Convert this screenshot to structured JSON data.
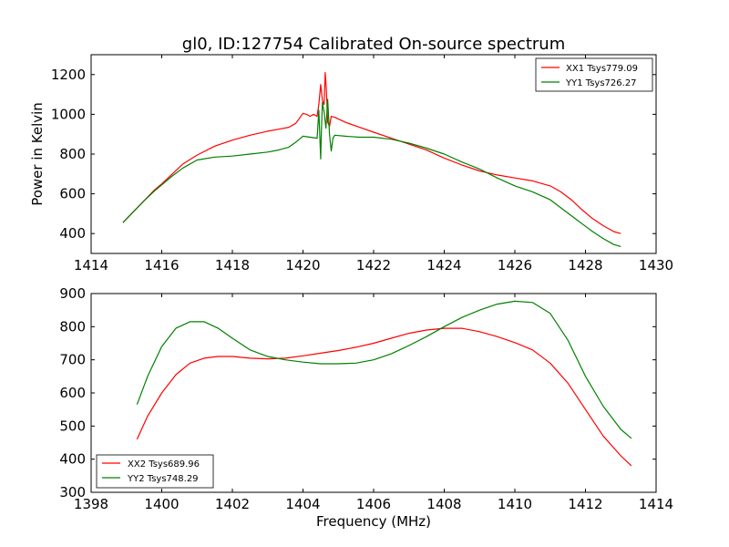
{
  "figure": {
    "title": "gl0, ID:127754 Calibrated On-source spectrum"
  },
  "colors": {
    "xx": "#ff0000",
    "yy": "#008000",
    "axes": "#000000",
    "background": "#ffffff"
  },
  "chart_data": [
    {
      "type": "line",
      "title": "gl0, ID:127754 Calibrated On-source spectrum",
      "xlabel": "",
      "ylabel": "Power in Kelvin",
      "xlim": [
        1414,
        1430
      ],
      "ylim": [
        300,
        1300
      ],
      "xticks": [
        1414,
        1416,
        1418,
        1420,
        1422,
        1424,
        1426,
        1428,
        1430
      ],
      "yticks": [
        400,
        600,
        800,
        1000,
        1200
      ],
      "legend_position": "upper right",
      "grid": false,
      "series": [
        {
          "name": "XX1 Tsys779.09",
          "color": "#ff0000",
          "x": [
            1414.9,
            1415.2,
            1415.5,
            1415.8,
            1416.0,
            1416.3,
            1416.6,
            1417.0,
            1417.5,
            1418.0,
            1418.5,
            1419.0,
            1419.3,
            1419.6,
            1419.8,
            1420.0,
            1420.1,
            1420.2,
            1420.3,
            1420.4,
            1420.45,
            1420.5,
            1420.55,
            1420.6,
            1420.63,
            1420.66,
            1420.7,
            1420.75,
            1420.8,
            1420.9,
            1421.2,
            1421.6,
            1422.0,
            1422.5,
            1423.0,
            1423.5,
            1424.0,
            1424.5,
            1425.0,
            1425.5,
            1426.0,
            1426.5,
            1427.0,
            1427.3,
            1427.6,
            1427.9,
            1428.2,
            1428.5,
            1428.8,
            1429.0
          ],
          "y": [
            455,
            510,
            565,
            620,
            650,
            700,
            750,
            795,
            840,
            870,
            895,
            915,
            925,
            935,
            955,
            1005,
            1000,
            990,
            1000,
            990,
            1050,
            1150,
            1070,
            1050,
            1210,
            1130,
            960,
            940,
            990,
            985,
            960,
            935,
            910,
            880,
            850,
            820,
            780,
            745,
            715,
            695,
            680,
            665,
            640,
            610,
            570,
            520,
            475,
            440,
            410,
            400
          ]
        },
        {
          "name": "YY1 Tsys726.27",
          "color": "#008000",
          "x": [
            1414.9,
            1415.2,
            1415.5,
            1415.8,
            1416.0,
            1416.3,
            1416.6,
            1417.0,
            1417.5,
            1418.0,
            1418.5,
            1419.0,
            1419.3,
            1419.6,
            1419.8,
            1420.0,
            1420.2,
            1420.4,
            1420.45,
            1420.5,
            1420.52,
            1420.55,
            1420.6,
            1420.65,
            1420.7,
            1420.75,
            1420.8,
            1420.85,
            1420.9,
            1421.2,
            1421.6,
            1422.0,
            1422.5,
            1423.0,
            1423.5,
            1424.0,
            1424.5,
            1425.0,
            1425.5,
            1426.0,
            1426.5,
            1427.0,
            1427.3,
            1427.6,
            1427.9,
            1428.2,
            1428.5,
            1428.8,
            1429.0
          ],
          "y": [
            455,
            510,
            565,
            615,
            645,
            690,
            730,
            770,
            785,
            790,
            800,
            810,
            820,
            835,
            860,
            890,
            885,
            880,
            1020,
            775,
            900,
            1060,
            1010,
            930,
            1075,
            900,
            815,
            880,
            895,
            890,
            885,
            885,
            875,
            855,
            830,
            800,
            760,
            725,
            680,
            640,
            610,
            570,
            530,
            490,
            450,
            410,
            375,
            345,
            335
          ]
        }
      ]
    },
    {
      "type": "line",
      "title": "",
      "xlabel": "Frequency (MHz)",
      "ylabel": "",
      "xlim": [
        1398,
        1414
      ],
      "ylim": [
        300,
        900
      ],
      "xticks": [
        1398,
        1400,
        1402,
        1404,
        1406,
        1408,
        1410,
        1412,
        1414
      ],
      "yticks": [
        300,
        400,
        500,
        600,
        700,
        800,
        900
      ],
      "legend_position": "lower left",
      "grid": false,
      "series": [
        {
          "name": "XX2 Tsys689.96",
          "color": "#ff0000",
          "x": [
            1399.3,
            1399.6,
            1400.0,
            1400.4,
            1400.8,
            1401.2,
            1401.6,
            1402.0,
            1402.5,
            1403.0,
            1403.5,
            1404.0,
            1404.5,
            1405.0,
            1405.5,
            1406.0,
            1406.5,
            1407.0,
            1407.5,
            1408.0,
            1408.5,
            1409.0,
            1409.5,
            1410.0,
            1410.5,
            1411.0,
            1411.5,
            1412.0,
            1412.5,
            1413.0,
            1413.3
          ],
          "y": [
            460,
            530,
            600,
            655,
            690,
            705,
            710,
            710,
            705,
            703,
            705,
            712,
            720,
            728,
            738,
            750,
            765,
            780,
            790,
            795,
            795,
            785,
            770,
            752,
            730,
            690,
            630,
            550,
            470,
            410,
            380
          ]
        },
        {
          "name": "YY2 Tsys748.29",
          "color": "#008000",
          "x": [
            1399.3,
            1399.6,
            1400.0,
            1400.4,
            1400.8,
            1401.2,
            1401.6,
            1402.0,
            1402.5,
            1403.0,
            1403.5,
            1404.0,
            1404.5,
            1405.0,
            1405.5,
            1406.0,
            1406.5,
            1407.0,
            1407.5,
            1408.0,
            1408.5,
            1409.0,
            1409.5,
            1410.0,
            1410.5,
            1411.0,
            1411.5,
            1412.0,
            1412.5,
            1413.0,
            1413.3
          ],
          "y": [
            565,
            650,
            740,
            795,
            815,
            815,
            795,
            765,
            730,
            710,
            700,
            693,
            688,
            688,
            690,
            700,
            718,
            743,
            770,
            800,
            828,
            850,
            868,
            877,
            873,
            840,
            760,
            650,
            560,
            490,
            463
          ]
        }
      ]
    }
  ]
}
